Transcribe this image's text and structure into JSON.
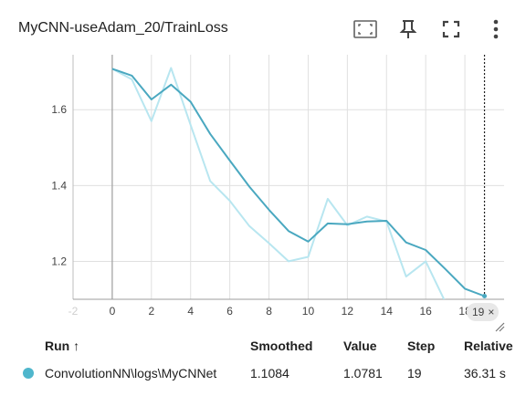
{
  "card": {
    "title": "MyCNN-useAdam_20/TrainLoss"
  },
  "toolbar": {
    "icons": [
      "fit-domain-icon",
      "pin-icon",
      "fullscreen-icon",
      "more-vert-icon"
    ]
  },
  "colors": {
    "smoothed_line": "#4aa8c0",
    "raw_line": "#b8e6f0",
    "grid": "#e0e0e0",
    "run_dot": "#4fb6cc"
  },
  "chart_data": {
    "type": "line",
    "title": "",
    "xlabel": "",
    "ylabel": "",
    "xlim": [
      -2,
      20
    ],
    "ylim": [
      1.1,
      1.745
    ],
    "x_ticks": [
      -2,
      0,
      2,
      4,
      6,
      8,
      10,
      12,
      14,
      16,
      18
    ],
    "x_tick_labels": [
      "-2",
      "0",
      "2",
      "4",
      "6",
      "8",
      "10",
      "12",
      "14",
      "16",
      "18"
    ],
    "y_ticks": [
      1.2,
      1.4,
      1.6
    ],
    "y_tick_labels": [
      "1.2",
      "1.4",
      "1.6"
    ],
    "grid": true,
    "hover_step": 19,
    "hover_step_label": "19",
    "series": [
      {
        "role": "raw",
        "x": [
          0,
          1,
          2,
          3,
          4,
          5,
          6,
          7,
          8,
          9,
          10,
          11,
          12,
          13,
          14,
          15,
          16,
          17,
          18,
          19
        ],
        "values": [
          1.708,
          1.68,
          1.57,
          1.71,
          1.56,
          1.412,
          1.36,
          1.293,
          1.248,
          1.2,
          1.212,
          1.365,
          1.295,
          1.318,
          1.305,
          1.16,
          1.2,
          1.093,
          1.063,
          1.0781
        ]
      },
      {
        "role": "smoothed",
        "x": [
          0,
          1,
          2,
          3,
          4,
          5,
          6,
          7,
          8,
          9,
          10,
          11,
          12,
          13,
          14,
          15,
          16,
          17,
          18,
          19
        ],
        "values": [
          1.708,
          1.69,
          1.627,
          1.666,
          1.621,
          1.536,
          1.466,
          1.397,
          1.336,
          1.28,
          1.252,
          1.3,
          1.298,
          1.305,
          1.307,
          1.25,
          1.23,
          1.18,
          1.128,
          1.1084
        ]
      }
    ]
  },
  "step_tag": {
    "label": "19",
    "close": "×"
  },
  "table": {
    "headers": {
      "run": "Run ↑",
      "smoothed": "Smoothed",
      "value": "Value",
      "step": "Step",
      "relative": "Relative"
    },
    "rows": [
      {
        "run": "ConvolutionNN\\logs\\MyCNNet",
        "smoothed": "1.1084",
        "value": "1.0781",
        "step": "19",
        "relative": "36.31 s"
      }
    ]
  }
}
